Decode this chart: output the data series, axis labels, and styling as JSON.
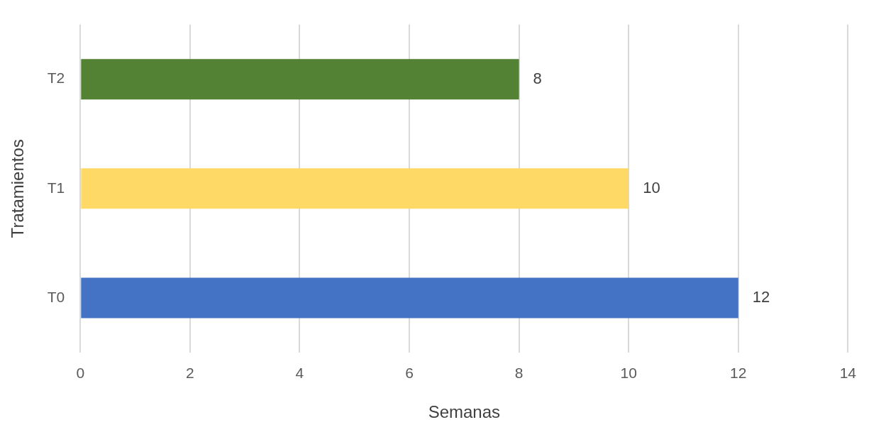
{
  "chart_data": {
    "type": "bar",
    "orientation": "horizontal",
    "categories": [
      "T2",
      "T1",
      "T0"
    ],
    "values": [
      8,
      10,
      12
    ],
    "colors": [
      "#548235",
      "#ffd966",
      "#4472c4"
    ],
    "xlim": [
      0,
      14
    ],
    "xticks": [
      0,
      2,
      4,
      6,
      8,
      10,
      12,
      14
    ],
    "xlabel": "Semanas",
    "ylabel": "Tratamientos",
    "grid": "x",
    "data_labels": true,
    "legend": false
  }
}
